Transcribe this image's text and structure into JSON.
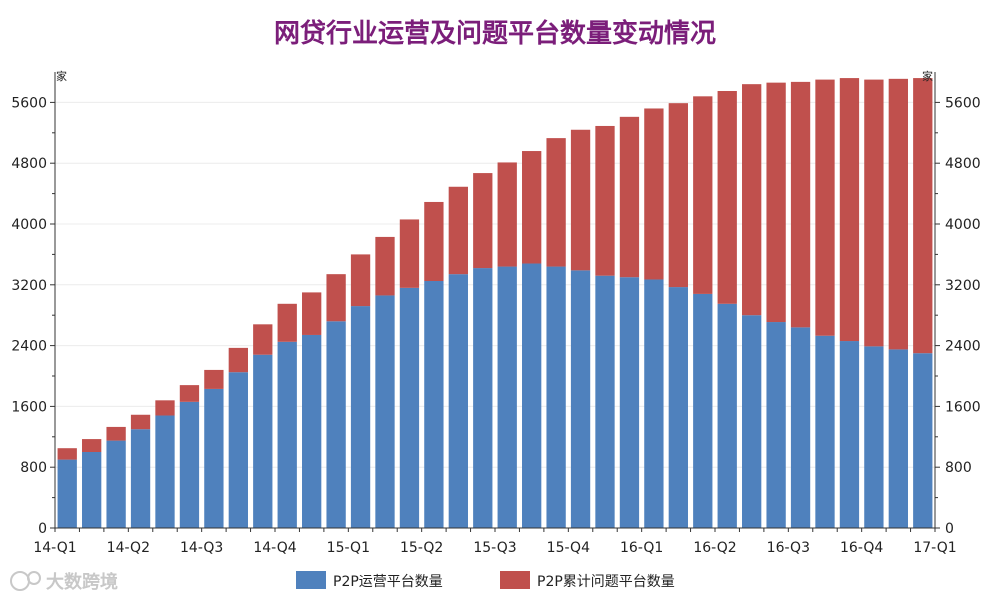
{
  "chart_data": {
    "type": "bar",
    "stacked": true,
    "title": "网贷行业运营及问题平台数量变动情况",
    "y_unit_left": "家",
    "y_unit_right": "家",
    "ylim": [
      0,
      6000
    ],
    "yticks": [
      0,
      800,
      1600,
      2400,
      3200,
      4000,
      4800,
      5600
    ],
    "x_tick_labels": [
      "14-Q1",
      "14-Q2",
      "14-Q3",
      "14-Q4",
      "15-Q1",
      "15-Q2",
      "15-Q3",
      "15-Q4",
      "16-Q1",
      "16-Q2",
      "16-Q3",
      "16-Q4",
      "17-Q1"
    ],
    "legend_position": "bottom",
    "grid": true,
    "series": [
      {
        "name": "P2P运营平台数量",
        "color": "#4f81bd",
        "values": [
          900,
          1000,
          1150,
          1300,
          1480,
          1660,
          1830,
          2050,
          2280,
          2450,
          2540,
          2720,
          2920,
          3060,
          3160,
          3250,
          3340,
          3420,
          3440,
          3480,
          3440,
          3390,
          3320,
          3300,
          3270,
          3170,
          3080,
          2950,
          2800,
          2710,
          2640,
          2530,
          2460,
          2390,
          2350,
          2300
        ]
      },
      {
        "name": "P2P累计问题平台数量",
        "color": "#c0504d",
        "values": [
          150,
          170,
          180,
          190,
          200,
          220,
          250,
          320,
          400,
          500,
          560,
          620,
          680,
          770,
          900,
          1040,
          1150,
          1250,
          1370,
          1480,
          1690,
          1850,
          1970,
          2110,
          2250,
          2420,
          2600,
          2800,
          3040,
          3150,
          3230,
          3370,
          3460,
          3510,
          3560,
          3620
        ]
      }
    ]
  },
  "watermark": "大数跨境"
}
